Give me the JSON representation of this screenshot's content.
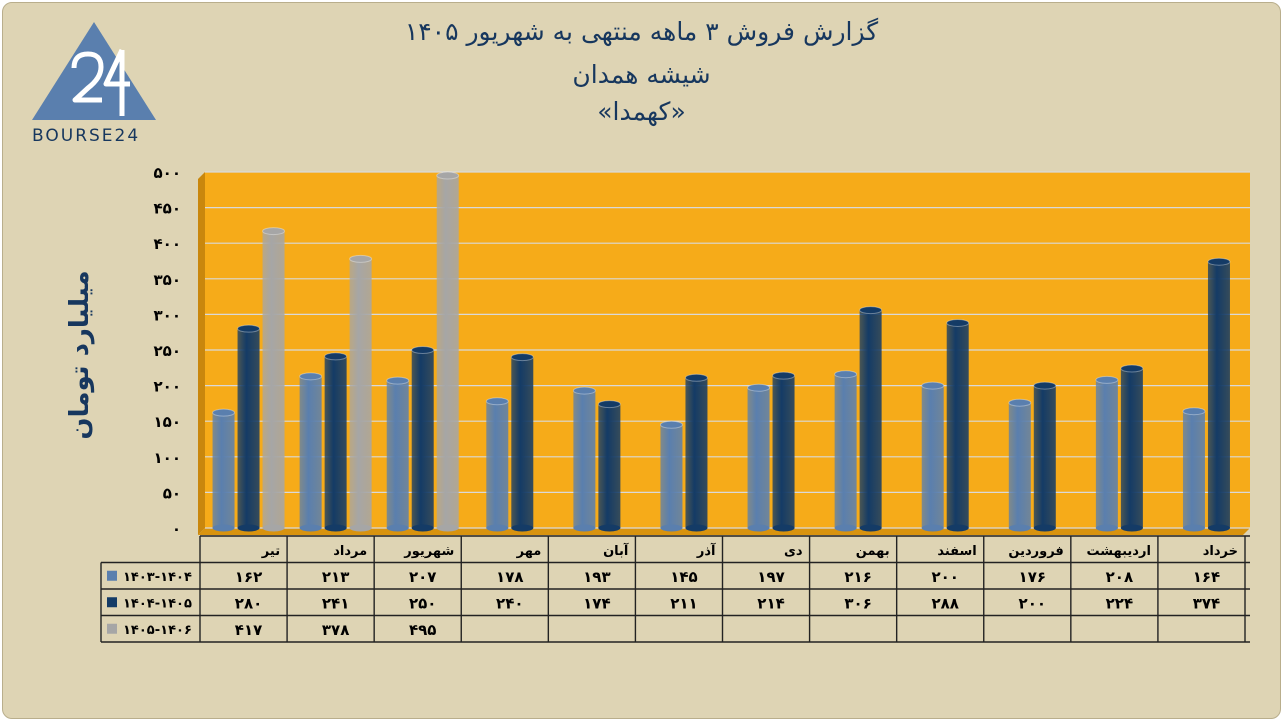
{
  "title": {
    "line1": "گزارش  فروش ۳ ماهه منتهی به شهریور ۱۴۰۵",
    "line2": "شیشه همدان",
    "line3": "«کهمدا»"
  },
  "logo": {
    "text": "BOURSE24",
    "mark": "24"
  },
  "colors": {
    "plot_bg": "#f6ab19",
    "frame_bg": "#ded4b4",
    "series1": "#5a7fae",
    "series2": "#143b66",
    "series3": "#a6a6a6",
    "text": "#17375e"
  },
  "chart_data": {
    "type": "bar",
    "ylabel": "میلیارد تومان",
    "ylim": [
      0,
      500
    ],
    "yticks": [
      0,
      50,
      100,
      150,
      200,
      250,
      300,
      350,
      400,
      450,
      500
    ],
    "ytick_labels": [
      "۰",
      "۵۰",
      "۱۰۰",
      "۱۵۰",
      "۲۰۰",
      "۲۵۰",
      "۳۰۰",
      "۳۵۰",
      "۴۰۰",
      "۴۵۰",
      "۵۰۰"
    ],
    "grid": true,
    "legend": "data-table-left",
    "categories": [
      "تیر",
      "مرداد",
      "شهریور",
      "مهر",
      "آبان",
      "آذر",
      "دی",
      "بهمن",
      "اسفند",
      "فروردین",
      "اردیبهشت",
      "خرداد"
    ],
    "series": [
      {
        "name": "۱۴۰۳-۱۴۰۴",
        "values": [
          162,
          213,
          207,
          178,
          193,
          145,
          197,
          216,
          200,
          176,
          208,
          164
        ],
        "labels": [
          "۱۶۲",
          "۲۱۳",
          "۲۰۷",
          "۱۷۸",
          "۱۹۳",
          "۱۴۵",
          "۱۹۷",
          "۲۱۶",
          "۲۰۰",
          "۱۷۶",
          "۲۰۸",
          "۱۶۴"
        ]
      },
      {
        "name": "۱۴۰۴-۱۴۰۵",
        "values": [
          280,
          241,
          250,
          240,
          174,
          211,
          214,
          306,
          288,
          200,
          224,
          374
        ],
        "labels": [
          "۲۸۰",
          "۲۴۱",
          "۲۵۰",
          "۲۴۰",
          "۱۷۴",
          "۲۱۱",
          "۲۱۴",
          "۳۰۶",
          "۲۸۸",
          "۲۰۰",
          "۲۲۴",
          "۳۷۴"
        ]
      },
      {
        "name": "۱۴۰۵-۱۴۰۶",
        "values": [
          417,
          378,
          495,
          null,
          null,
          null,
          null,
          null,
          null,
          null,
          null,
          null
        ],
        "labels": [
          "۴۱۷",
          "۳۷۸",
          "۴۹۵",
          "",
          "",
          "",
          "",
          "",
          "",
          "",
          "",
          ""
        ]
      }
    ]
  }
}
